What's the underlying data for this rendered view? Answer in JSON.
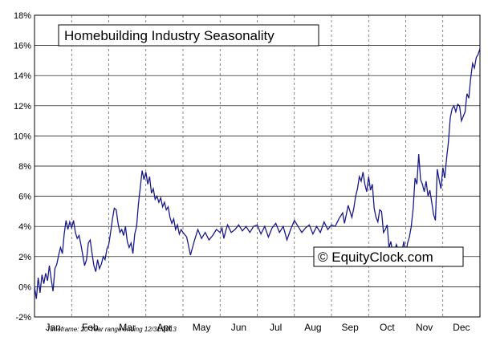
{
  "chart_data": {
    "type": "line",
    "title": "Homebuilding Industry Seasonality",
    "watermark": "© EquityClock.com",
    "footnote": "Timeframe: 20-Year range ending 12/31/2013",
    "xlabel": "",
    "ylabel": "",
    "ylim": [
      -2,
      18
    ],
    "yticks": [
      "-2%",
      "0%",
      "2%",
      "4%",
      "6%",
      "8%",
      "10%",
      "12%",
      "14%",
      "16%",
      "18%"
    ],
    "ytick_values": [
      -2,
      0,
      2,
      4,
      6,
      8,
      10,
      12,
      14,
      16,
      18
    ],
    "months": [
      "Jan",
      "Feb",
      "Mar",
      "Apr",
      "May",
      "Jun",
      "Jul",
      "Aug",
      "Sep",
      "Oct",
      "Nov",
      "Dec"
    ],
    "xlim": [
      0,
      12
    ],
    "grid": true,
    "line_color": "#1a1a8c",
    "series": [
      {
        "x": [
          0.0,
          0.05,
          0.1,
          0.15,
          0.2,
          0.25,
          0.3,
          0.35,
          0.4,
          0.45,
          0.5,
          0.55,
          0.6,
          0.65,
          0.7,
          0.75,
          0.8,
          0.85,
          0.9,
          0.95,
          1.0,
          1.05,
          1.1,
          1.15,
          1.2,
          1.25,
          1.3,
          1.35,
          1.4,
          1.45,
          1.5,
          1.55,
          1.6,
          1.65,
          1.7,
          1.75,
          1.8,
          1.85,
          1.9,
          1.95,
          2.0,
          2.05,
          2.1,
          2.15,
          2.2,
          2.25,
          2.3,
          2.35,
          2.4,
          2.45,
          2.5,
          2.55,
          2.6,
          2.65,
          2.7,
          2.75,
          2.8,
          2.85,
          2.9,
          2.95,
          3.0,
          3.05,
          3.1,
          3.15,
          3.2,
          3.25,
          3.3,
          3.35,
          3.4,
          3.45,
          3.5,
          3.55,
          3.6,
          3.65,
          3.7,
          3.75,
          3.8,
          3.85,
          3.9,
          3.95,
          4.0,
          4.1,
          4.2,
          4.3,
          4.4,
          4.5,
          4.6,
          4.7,
          4.8,
          4.9,
          5.0,
          5.05,
          5.1,
          5.15,
          5.2,
          5.3,
          5.4,
          5.5,
          5.6,
          5.7,
          5.8,
          5.9,
          6.0,
          6.1,
          6.2,
          6.3,
          6.4,
          6.5,
          6.6,
          6.7,
          6.8,
          6.9,
          7.0,
          7.1,
          7.2,
          7.3,
          7.4,
          7.5,
          7.6,
          7.7,
          7.8,
          7.9,
          8.0,
          8.1,
          8.2,
          8.3,
          8.35,
          8.4,
          8.45,
          8.5,
          8.55,
          8.6,
          8.65,
          8.7,
          8.75,
          8.8,
          8.85,
          8.9,
          8.95,
          9.0,
          9.05,
          9.1,
          9.15,
          9.2,
          9.25,
          9.3,
          9.35,
          9.4,
          9.45,
          9.5,
          9.55,
          9.6,
          9.65,
          9.7,
          9.75,
          9.8,
          9.85,
          9.9,
          9.95,
          10.0,
          10.05,
          10.1,
          10.15,
          10.2,
          10.25,
          10.3,
          10.35,
          10.4,
          10.45,
          10.5,
          10.55,
          10.6,
          10.65,
          10.7,
          10.75,
          10.8,
          10.85,
          10.9,
          10.95,
          11.0,
          11.05,
          11.1,
          11.15,
          11.2,
          11.25,
          11.3,
          11.35,
          11.4,
          11.45,
          11.5,
          11.55,
          11.6,
          11.65,
          11.7,
          11.75,
          11.8,
          11.85,
          11.9,
          11.95,
          12.0
        ],
        "y": [
          0.0,
          -0.8,
          0.6,
          -0.4,
          0.8,
          0.2,
          0.9,
          0.4,
          1.4,
          0.5,
          -0.3,
          1.2,
          1.5,
          2.1,
          2.6,
          2.2,
          3.5,
          4.4,
          3.8,
          4.3,
          3.9,
          4.4,
          3.6,
          3.2,
          3.4,
          2.8,
          2.1,
          1.4,
          1.8,
          2.9,
          3.1,
          2.2,
          1.4,
          1.0,
          1.8,
          1.2,
          1.5,
          2.0,
          1.8,
          2.5,
          2.8,
          3.6,
          4.5,
          5.2,
          5.1,
          4.2,
          3.6,
          3.8,
          3.4,
          4.0,
          3.0,
          2.6,
          2.9,
          2.2,
          3.5,
          4.0,
          5.5,
          6.6,
          7.7,
          7.1,
          7.6,
          6.8,
          7.3,
          6.2,
          6.5,
          5.8,
          6.0,
          5.6,
          5.9,
          5.3,
          5.6,
          5.1,
          5.3,
          4.6,
          4.2,
          4.5,
          3.8,
          4.1,
          3.5,
          3.8,
          3.6,
          3.3,
          2.1,
          3.0,
          3.8,
          3.2,
          3.6,
          3.1,
          3.4,
          3.8,
          3.6,
          3.9,
          3.2,
          3.7,
          4.1,
          3.6,
          3.8,
          4.1,
          3.7,
          4.0,
          3.6,
          4.0,
          4.1,
          3.5,
          4.0,
          3.3,
          3.9,
          4.2,
          3.6,
          4.0,
          3.1,
          3.8,
          4.4,
          4.0,
          3.6,
          3.9,
          4.1,
          3.5,
          4.0,
          3.6,
          4.3,
          3.8,
          4.1,
          4.0,
          4.5,
          4.9,
          4.2,
          4.8,
          5.4,
          5.0,
          4.6,
          5.2,
          6.0,
          6.5,
          7.3,
          7.0,
          7.6,
          6.8,
          6.3,
          7.3,
          6.4,
          6.8,
          5.2,
          4.6,
          4.3,
          5.1,
          5.0,
          3.6,
          3.8,
          4.1,
          2.6,
          3.0,
          2.2,
          2.4,
          2.8,
          2.4,
          2.2,
          2.4,
          3.0,
          2.1,
          2.9,
          3.3,
          4.0,
          5.2,
          7.2,
          6.8,
          8.8,
          7.1,
          6.8,
          6.3,
          7.0,
          6.0,
          6.4,
          5.6,
          4.8,
          4.4,
          7.8,
          7.1,
          6.5,
          7.9,
          7.2,
          8.5,
          9.6,
          11.2,
          11.8,
          12.0,
          11.6,
          12.1,
          12.0,
          11.0,
          11.3,
          11.6,
          12.8,
          12.5,
          13.8,
          14.8,
          14.5,
          15.2,
          15.4,
          15.8
        ]
      }
    ]
  }
}
